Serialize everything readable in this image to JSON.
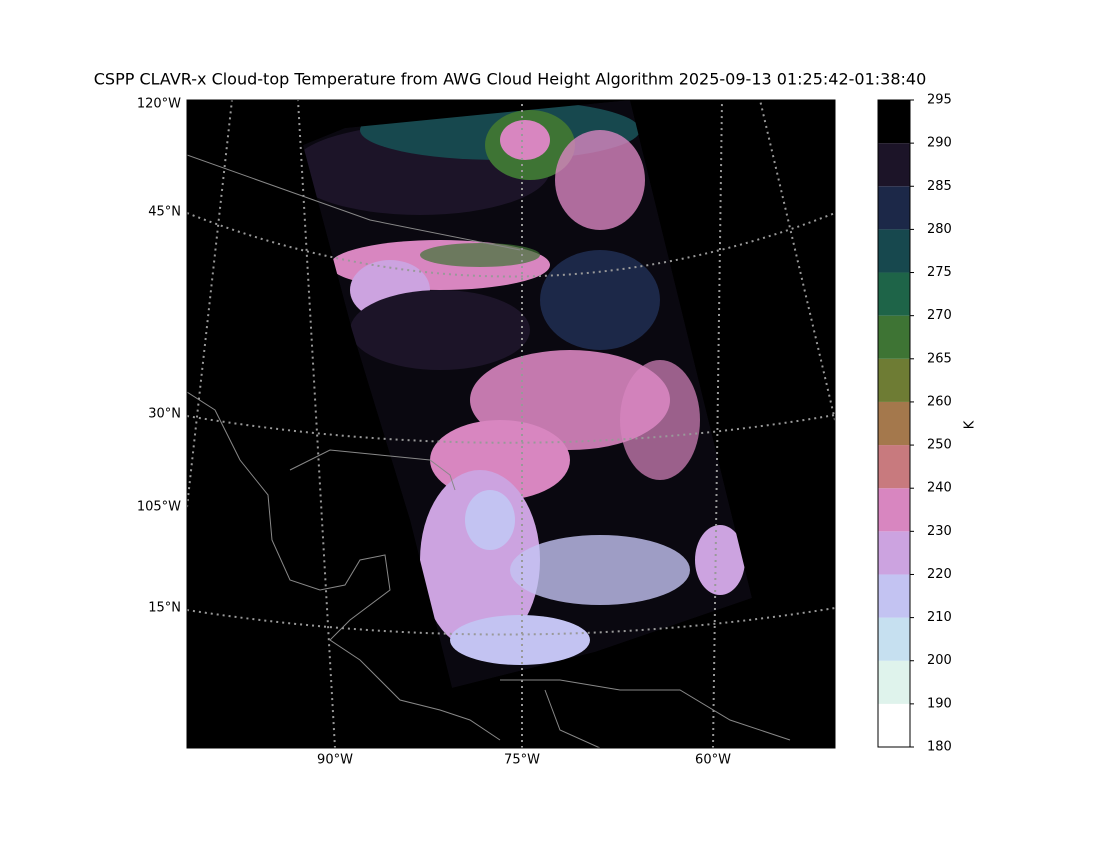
{
  "title": "CSPP CLAVR-x Cloud-top Temperature from AWG Cloud Height Algorithm 2025-09-13 01:25:42-01:38:40",
  "map": {
    "left_labels": [
      "120°W",
      "45°N",
      "30°N",
      "105°W",
      "15°N"
    ],
    "bottom_labels": [
      "90°W",
      "75°W",
      "60°W"
    ]
  },
  "colorbar": {
    "label": "K",
    "ticks": [
      180,
      190,
      200,
      210,
      220,
      230,
      240,
      250,
      260,
      265,
      270,
      275,
      280,
      285,
      290,
      295
    ],
    "colors": [
      "#ffffff",
      "#dff3ec",
      "#c6e0f0",
      "#c3c3f2",
      "#cca3e0",
      "#d886c0",
      "#c87a7e",
      "#a4784c",
      "#6e7c34",
      "#3e7434",
      "#1e6448",
      "#17484e",
      "#1c2848",
      "#1c1428",
      "#000000"
    ]
  }
}
